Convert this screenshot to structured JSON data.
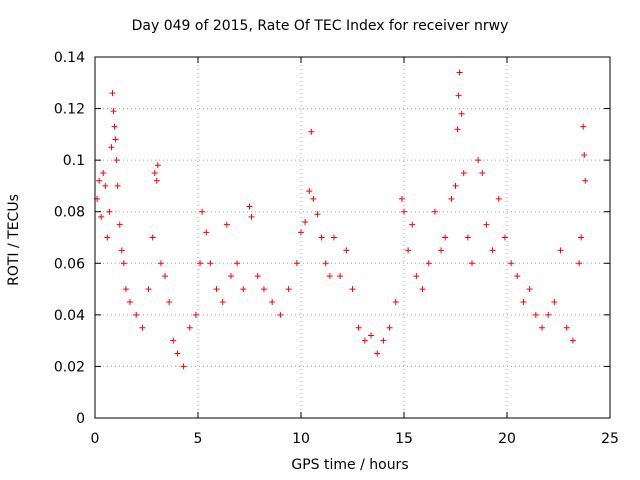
{
  "chart_data": {
    "type": "scatter",
    "title": "Day 049 of 2015, Rate Of TEC Index for receiver nrwy",
    "xlabel": "GPS time / hours",
    "ylabel": "ROTI / TECUs",
    "xlim": [
      0,
      25
    ],
    "ylim": [
      0,
      0.14
    ],
    "x_ticks": [
      "0",
      "5",
      "10",
      "15",
      "20",
      "25"
    ],
    "y_ticks": [
      "0",
      "0.02",
      "0.04",
      "0.06",
      "0.08",
      "0.1",
      "0.12",
      "0.14"
    ],
    "x_tick_values": [
      0,
      5,
      10,
      15,
      20,
      25
    ],
    "y_tick_values": [
      0,
      0.02,
      0.04,
      0.06,
      0.08,
      0.1,
      0.12,
      0.14
    ],
    "grid": true,
    "marker": "plus",
    "marker_color": "#ff0000",
    "series": [
      {
        "values": [
          [
            0.1,
            0.085
          ],
          [
            0.2,
            0.092
          ],
          [
            0.3,
            0.078
          ],
          [
            0.4,
            0.095
          ],
          [
            0.5,
            0.09
          ],
          [
            0.6,
            0.07
          ],
          [
            0.7,
            0.08
          ],
          [
            0.8,
            0.105
          ],
          [
            0.85,
            0.126
          ],
          [
            0.9,
            0.119
          ],
          [
            0.95,
            0.113
          ],
          [
            1.0,
            0.108
          ],
          [
            1.05,
            0.1
          ],
          [
            1.1,
            0.09
          ],
          [
            1.2,
            0.075
          ],
          [
            1.3,
            0.065
          ],
          [
            1.4,
            0.06
          ],
          [
            1.5,
            0.05
          ],
          [
            1.7,
            0.045
          ],
          [
            2.0,
            0.04
          ],
          [
            2.3,
            0.035
          ],
          [
            2.6,
            0.05
          ],
          [
            2.8,
            0.07
          ],
          [
            2.9,
            0.095
          ],
          [
            3.0,
            0.092
          ],
          [
            3.05,
            0.098
          ],
          [
            3.2,
            0.06
          ],
          [
            3.4,
            0.055
          ],
          [
            3.6,
            0.045
          ],
          [
            3.8,
            0.03
          ],
          [
            4.0,
            0.025
          ],
          [
            4.3,
            0.02
          ],
          [
            4.6,
            0.035
          ],
          [
            4.9,
            0.04
          ],
          [
            5.1,
            0.06
          ],
          [
            5.2,
            0.08
          ],
          [
            5.4,
            0.072
          ],
          [
            5.6,
            0.06
          ],
          [
            5.9,
            0.05
          ],
          [
            6.2,
            0.045
          ],
          [
            6.4,
            0.075
          ],
          [
            6.6,
            0.055
          ],
          [
            6.9,
            0.06
          ],
          [
            7.2,
            0.05
          ],
          [
            7.5,
            0.082
          ],
          [
            7.6,
            0.078
          ],
          [
            7.9,
            0.055
          ],
          [
            8.2,
            0.05
          ],
          [
            8.6,
            0.045
          ],
          [
            9.0,
            0.04
          ],
          [
            9.4,
            0.05
          ],
          [
            9.8,
            0.06
          ],
          [
            10.0,
            0.072
          ],
          [
            10.2,
            0.076
          ],
          [
            10.4,
            0.088
          ],
          [
            10.5,
            0.111
          ],
          [
            10.6,
            0.085
          ],
          [
            10.8,
            0.079
          ],
          [
            11.0,
            0.07
          ],
          [
            11.2,
            0.06
          ],
          [
            11.4,
            0.055
          ],
          [
            11.6,
            0.07
          ],
          [
            11.9,
            0.055
          ],
          [
            12.2,
            0.065
          ],
          [
            12.5,
            0.05
          ],
          [
            12.8,
            0.035
          ],
          [
            13.1,
            0.03
          ],
          [
            13.4,
            0.032
          ],
          [
            13.7,
            0.025
          ],
          [
            14.0,
            0.03
          ],
          [
            14.3,
            0.035
          ],
          [
            14.6,
            0.045
          ],
          [
            14.9,
            0.085
          ],
          [
            15.0,
            0.08
          ],
          [
            15.2,
            0.065
          ],
          [
            15.4,
            0.075
          ],
          [
            15.6,
            0.055
          ],
          [
            15.9,
            0.05
          ],
          [
            16.2,
            0.06
          ],
          [
            16.5,
            0.08
          ],
          [
            16.8,
            0.065
          ],
          [
            17.0,
            0.07
          ],
          [
            17.3,
            0.085
          ],
          [
            17.5,
            0.09
          ],
          [
            17.6,
            0.112
          ],
          [
            17.65,
            0.125
          ],
          [
            17.7,
            0.134
          ],
          [
            17.8,
            0.118
          ],
          [
            17.9,
            0.095
          ],
          [
            18.1,
            0.07
          ],
          [
            18.3,
            0.06
          ],
          [
            18.6,
            0.1
          ],
          [
            18.8,
            0.095
          ],
          [
            19.0,
            0.075
          ],
          [
            19.3,
            0.065
          ],
          [
            19.6,
            0.085
          ],
          [
            19.9,
            0.07
          ],
          [
            20.2,
            0.06
          ],
          [
            20.5,
            0.055
          ],
          [
            20.8,
            0.045
          ],
          [
            21.1,
            0.05
          ],
          [
            21.4,
            0.04
          ],
          [
            21.7,
            0.035
          ],
          [
            22.0,
            0.04
          ],
          [
            22.3,
            0.045
          ],
          [
            22.6,
            0.065
          ],
          [
            22.9,
            0.035
          ],
          [
            23.2,
            0.03
          ],
          [
            23.5,
            0.06
          ],
          [
            23.6,
            0.07
          ],
          [
            23.7,
            0.113
          ],
          [
            23.75,
            0.102
          ],
          [
            23.8,
            0.092
          ]
        ]
      }
    ]
  }
}
